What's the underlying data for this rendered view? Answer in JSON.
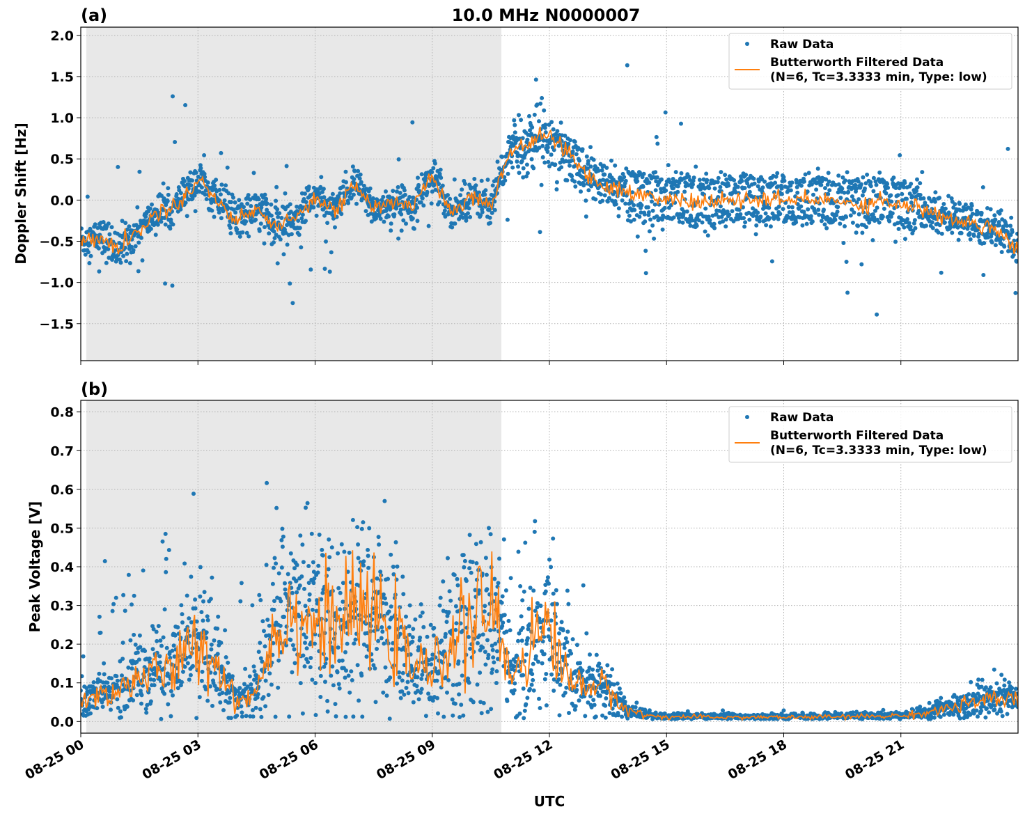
{
  "chart_data": [
    {
      "type": "scatter",
      "panel_label": "(a)",
      "title": "10.0 MHz N0000007",
      "xlabel": "",
      "ylabel": "Doppler Shift [Hz]",
      "xlim_hours": [
        0,
        24
      ],
      "ylim": [
        -1.95,
        2.1
      ],
      "yticks": [
        2.0,
        1.5,
        1.0,
        0.5,
        0.0,
        -0.5,
        -1.0,
        -1.5
      ],
      "ytick_labels": [
        "2.0",
        "1.5",
        "1.0",
        "0.5",
        "0.0",
        "−0.5",
        "−1.0",
        "−1.5"
      ],
      "shaded_night_hours": [
        0.14,
        10.77
      ],
      "grid": true,
      "legend_placement": "top-right",
      "legend": [
        "Raw Data",
        "Butterworth Filtered Data",
        "(N=6, Tc=3.3333 min, Type: low)"
      ],
      "series": [
        {
          "name": "Raw Data",
          "color": "#1f77b4",
          "kind": "scatter",
          "x_hours_step": 0.5,
          "spread": [
            0.2,
            0.2,
            0.25,
            0.2,
            0.2,
            0.2,
            0.22,
            0.2,
            0.25,
            0.25,
            0.3,
            0.25,
            0.2,
            0.2,
            0.2,
            0.2,
            0.2,
            0.2,
            0.2,
            0.2,
            0.2,
            0.2,
            0.3,
            0.35,
            0.35,
            0.3,
            0.25,
            0.25,
            0.28,
            0.3,
            0.3,
            0.3,
            0.3,
            0.3,
            0.3,
            0.28,
            0.28,
            0.28,
            0.28,
            0.28,
            0.3,
            0.3,
            0.3,
            0.25,
            0.22,
            0.22,
            0.22,
            0.22,
            0.22
          ]
        },
        {
          "name": "Butterworth Filtered Data",
          "color": "#ff7f0e",
          "kind": "line",
          "x_hours_step": 0.5,
          "values": [
            -0.5,
            -0.45,
            -0.6,
            -0.35,
            -0.15,
            -0.05,
            0.25,
            0.0,
            -0.25,
            -0.1,
            -0.35,
            -0.2,
            0.05,
            -0.15,
            0.2,
            -0.1,
            -0.05,
            -0.05,
            0.3,
            -0.15,
            0.05,
            -0.05,
            0.6,
            0.7,
            0.8,
            0.55,
            0.3,
            0.15,
            0.1,
            0.05,
            0.0,
            0.0,
            -0.05,
            0.0,
            0.0,
            0.0,
            0.0,
            0.0,
            0.0,
            -0.02,
            -0.05,
            0.0,
            -0.05,
            -0.1,
            -0.2,
            -0.25,
            -0.3,
            -0.35,
            -0.6
          ]
        }
      ]
    },
    {
      "type": "scatter",
      "panel_label": "(b)",
      "title": "",
      "xlabel": "UTC",
      "ylabel": "Peak Voltage [V]",
      "xlim_hours": [
        0,
        24
      ],
      "ylim": [
        -0.03,
        0.83
      ],
      "yticks": [
        0.8,
        0.7,
        0.6,
        0.5,
        0.4,
        0.3,
        0.2,
        0.1,
        0.0
      ],
      "ytick_labels": [
        "0.8",
        "0.7",
        "0.6",
        "0.5",
        "0.4",
        "0.3",
        "0.2",
        "0.1",
        "0.0"
      ],
      "xticks_hours": [
        0,
        3,
        6,
        9,
        12,
        15,
        18,
        21
      ],
      "xtick_labels": [
        "08-25 00",
        "08-25 03",
        "08-25 06",
        "08-25 09",
        "08-25 12",
        "08-25 15",
        "08-25 18",
        "08-25 21"
      ],
      "shaded_night_hours": [
        0.14,
        10.77
      ],
      "grid": true,
      "legend_placement": "top-right",
      "legend": [
        "Raw Data",
        "Butterworth Filtered Data",
        "(N=6, Tc=3.3333 min, Type: low)"
      ],
      "series": [
        {
          "name": "Raw Data",
          "color": "#1f77b4",
          "kind": "scatter",
          "x_hours_step": 0.5
        },
        {
          "name": "Butterworth Filtered Data",
          "color": "#ff7f0e",
          "kind": "line",
          "x_hours_step": 0.5,
          "values": [
            0.05,
            0.07,
            0.08,
            0.12,
            0.12,
            0.15,
            0.2,
            0.15,
            0.05,
            0.08,
            0.25,
            0.28,
            0.25,
            0.25,
            0.27,
            0.28,
            0.22,
            0.15,
            0.12,
            0.22,
            0.25,
            0.3,
            0.12,
            0.2,
            0.25,
            0.1,
            0.1,
            0.08,
            0.03,
            0.015,
            0.012,
            0.012,
            0.011,
            0.011,
            0.011,
            0.011,
            0.011,
            0.011,
            0.012,
            0.012,
            0.013,
            0.014,
            0.015,
            0.02,
            0.03,
            0.04,
            0.05,
            0.055,
            0.06
          ]
        }
      ]
    }
  ]
}
